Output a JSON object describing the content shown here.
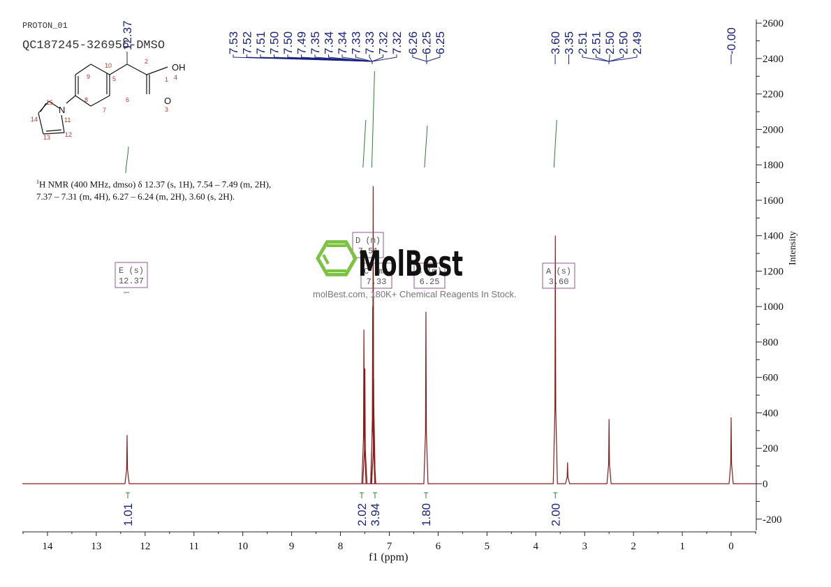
{
  "header": {
    "experiment": "PROTON_01",
    "sample_id": "QC187245-326956-DMSO"
  },
  "description": {
    "line1": "H NMR (400 MHz, dmso) δ 12.37 (s, 1H), 7.54 – 7.49 (m, 2H),",
    "line2": "7.37 – 7.31 (m, 4H), 6.27 – 6.24 (m, 2H), 3.60 (s, 2H).",
    "superscript": "1"
  },
  "structure": {
    "atom_labels": [
      "1",
      "2",
      "3",
      "4",
      "5",
      "6",
      "7",
      "8",
      "9",
      "10",
      "11",
      "12",
      "13",
      "14",
      "15"
    ],
    "heteroatoms": [
      "OH",
      "O",
      "N"
    ]
  },
  "watermark": {
    "brand": "MolBest",
    "tagline": "molBest.com, 180K+ Chemical Reagents In Stock.",
    "logo_color": "#7dc242"
  },
  "colors": {
    "spectrum": "#8b1a1a",
    "peak_labels": "#1a237e",
    "integral": "#2e7d32",
    "multiplet_box": "#8e5a8e",
    "axis": "#222222"
  },
  "chart_data": {
    "type": "line",
    "title": "PROTON_01 QC187245-326956-DMSO",
    "xlabel": "f1 (ppm)",
    "ylabel": "Intensity",
    "xlim": [
      14.5,
      -0.5
    ],
    "ylim": [
      -250,
      2600
    ],
    "x_ticks": [
      14,
      13,
      12,
      11,
      10,
      9,
      8,
      7,
      6,
      5,
      4,
      3,
      2,
      1,
      0
    ],
    "y_ticks": [
      2600,
      2400,
      2200,
      2000,
      1800,
      1600,
      1400,
      1200,
      1000,
      800,
      600,
      400,
      200,
      0,
      -200
    ],
    "grid": false,
    "peaks": [
      {
        "ppm": 12.37,
        "intensity": 275
      },
      {
        "ppm": 7.52,
        "intensity": 870
      },
      {
        "ppm": 7.5,
        "intensity": 650
      },
      {
        "ppm": 7.34,
        "intensity": 1000
      },
      {
        "ppm": 7.33,
        "intensity": 1680
      },
      {
        "ppm": 7.32,
        "intensity": 590
      },
      {
        "ppm": 6.25,
        "intensity": 970
      },
      {
        "ppm": 3.6,
        "intensity": 1400
      },
      {
        "ppm": 3.35,
        "intensity": 120
      },
      {
        "ppm": 2.5,
        "intensity": 365
      },
      {
        "ppm": 0.0,
        "intensity": 375
      }
    ],
    "peak_labels": [
      "7.53",
      "7.52",
      "7.51",
      "7.50",
      "7.50",
      "7.49",
      "7.35",
      "7.34",
      "7.34",
      "7.33",
      "7.33",
      "7.32",
      "7.32",
      "6.26",
      "6.25",
      "6.25",
      "3.60",
      "3.35",
      "2.51",
      "2.51",
      "2.50",
      "2.50",
      "2.49",
      "-0.00"
    ],
    "peak_label_top": "12.37",
    "multiplets": [
      {
        "id": "E",
        "type": "s",
        "shift": "12.37"
      },
      {
        "id": "D",
        "type": "m",
        "shift": "7.51"
      },
      {
        "id": "C",
        "type": "m",
        "shift": "7.33"
      },
      {
        "id": "B",
        "type": "m",
        "shift": "6.25"
      },
      {
        "id": "A",
        "type": "s",
        "shift": "3.60"
      }
    ],
    "integrals": [
      {
        "ppm": 12.37,
        "value": "1.01"
      },
      {
        "ppm": 7.51,
        "value": "2.02"
      },
      {
        "ppm": 7.33,
        "value": "3.94"
      },
      {
        "ppm": 6.25,
        "value": "1.80"
      },
      {
        "ppm": 3.6,
        "value": "2.00"
      }
    ]
  }
}
